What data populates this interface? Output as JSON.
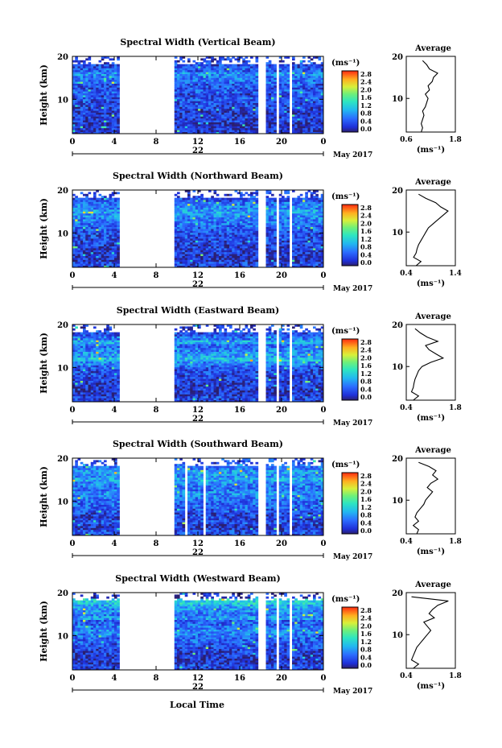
{
  "figure": {
    "xlabel": "Local Time",
    "date_label": "May 2017",
    "day_label": "22",
    "colorbar_unit": "(ms⁻¹)",
    "colorbar_ticks": [
      "0.0",
      "0.4",
      "0.8",
      "1.2",
      "1.6",
      "2.0",
      "2.4",
      "2.8"
    ],
    "avg_title": "Average",
    "avg_xunit": "(ms⁻¹)",
    "ylabel": "Height (km)"
  },
  "chart_data": [
    {
      "type": "heatmap",
      "title": "Spectral Width (Vertical Beam)",
      "x": [
        0,
        24
      ],
      "xticks": [
        "0",
        "4",
        "8",
        "12",
        "16",
        "20",
        "0"
      ],
      "ylim": [
        2,
        20
      ],
      "yticks": [
        "20",
        "10"
      ],
      "clim": [
        0,
        3.0
      ],
      "gaps": [
        [
          4.6,
          5.0
        ],
        [
          5.0,
          9.4
        ],
        [
          9.5,
          9.8
        ],
        [
          17.8,
          18.6
        ],
        [
          19.5,
          19.8
        ],
        [
          20.7,
          21.0
        ]
      ],
      "avg_profile": {
        "xlim": [
          0,
          1.8
        ],
        "xticks": [
          "0.6",
          "1.8"
        ],
        "height": [
          2,
          3,
          4,
          5,
          6,
          7,
          8,
          9,
          10,
          11,
          12,
          13,
          14,
          15,
          16,
          17,
          18,
          19
        ],
        "value": [
          0.55,
          0.6,
          0.55,
          0.6,
          0.65,
          0.6,
          0.7,
          0.75,
          0.8,
          0.7,
          0.85,
          0.8,
          0.95,
          1.0,
          1.15,
          0.85,
          0.75,
          0.6
        ]
      }
    },
    {
      "type": "heatmap",
      "title": "Spectral Width (Northward Beam)",
      "x": [
        0,
        24
      ],
      "xticks": [
        "0",
        "4",
        "8",
        "12",
        "16",
        "20",
        "0"
      ],
      "ylim": [
        2,
        20
      ],
      "yticks": [
        "20",
        "10"
      ],
      "clim": [
        0,
        3.0
      ],
      "gaps": [
        [
          4.6,
          5.0
        ],
        [
          5.0,
          9.4
        ],
        [
          9.5,
          9.8
        ],
        [
          17.8,
          18.6
        ],
        [
          19.5,
          19.8
        ],
        [
          20.7,
          21.0
        ]
      ],
      "avg_profile": {
        "xlim": [
          0.4,
          1.4
        ],
        "xticks": [
          "0.4",
          "1.4"
        ],
        "height": [
          2,
          3,
          4,
          5,
          6,
          7,
          8,
          9,
          10,
          11,
          12,
          13,
          14,
          15,
          16,
          17,
          18,
          19
        ],
        "value": [
          0.6,
          0.7,
          0.55,
          0.6,
          0.62,
          0.65,
          0.7,
          0.75,
          0.8,
          0.85,
          0.95,
          1.05,
          1.15,
          1.25,
          1.1,
          1.0,
          0.8,
          0.65
        ]
      }
    },
    {
      "type": "heatmap",
      "title": "Spectral Width (Eastward Beam)",
      "x": [
        0,
        24
      ],
      "xticks": [
        "0",
        "4",
        "8",
        "12",
        "16",
        "20",
        "0"
      ],
      "ylim": [
        2,
        20
      ],
      "yticks": [
        "20",
        "10"
      ],
      "clim": [
        0,
        3.0
      ],
      "gaps": [
        [
          4.6,
          5.0
        ],
        [
          5.0,
          9.4
        ],
        [
          9.5,
          9.8
        ],
        [
          17.8,
          18.6
        ],
        [
          19.5,
          19.8
        ],
        [
          20.7,
          21.0
        ]
      ],
      "avg_profile": {
        "xlim": [
          0.4,
          1.8
        ],
        "xticks": [
          "0.4",
          "1.8"
        ],
        "height": [
          2,
          3,
          4,
          5,
          6,
          7,
          8,
          9,
          10,
          11,
          12,
          13,
          14,
          15,
          16,
          17,
          18,
          19
        ],
        "value": [
          0.6,
          0.75,
          0.55,
          0.6,
          0.62,
          0.65,
          0.7,
          0.75,
          0.85,
          1.1,
          1.45,
          1.25,
          1.05,
          0.95,
          1.3,
          1.0,
          0.8,
          0.65
        ]
      }
    },
    {
      "type": "heatmap",
      "title": "Spectral Width (Southward Beam)",
      "x": [
        0,
        24
      ],
      "xticks": [
        "0",
        "4",
        "8",
        "12",
        "16",
        "20",
        "0"
      ],
      "ylim": [
        2,
        20
      ],
      "yticks": [
        "20",
        "10"
      ],
      "clim": [
        0,
        3.0
      ],
      "gaps": [
        [
          4.6,
          5.0
        ],
        [
          5.0,
          9.4
        ],
        [
          9.5,
          9.8
        ],
        [
          10.8,
          11.1
        ],
        [
          12.4,
          12.8
        ],
        [
          17.8,
          18.6
        ],
        [
          19.5,
          19.8
        ],
        [
          20.7,
          21.0
        ]
      ],
      "avg_profile": {
        "xlim": [
          0.4,
          1.8
        ],
        "xticks": [
          "0.4",
          "1.8"
        ],
        "height": [
          2,
          3,
          4,
          5,
          6,
          7,
          8,
          9,
          10,
          11,
          12,
          13,
          14,
          15,
          16,
          17,
          18,
          19
        ],
        "value": [
          0.7,
          0.75,
          0.6,
          0.75,
          0.65,
          0.7,
          0.8,
          0.9,
          0.95,
          1.05,
          1.15,
          1.0,
          1.1,
          1.3,
          1.15,
          1.25,
          1.05,
          0.75
        ]
      }
    },
    {
      "type": "heatmap",
      "title": "Spectral Width (Westward Beam)",
      "x": [
        0,
        24
      ],
      "xticks": [
        "0",
        "4",
        "8",
        "12",
        "16",
        "20",
        "0"
      ],
      "ylim": [
        2,
        20
      ],
      "yticks": [
        "20",
        "10"
      ],
      "clim": [
        0,
        3.0
      ],
      "gaps": [
        [
          4.6,
          5.0
        ],
        [
          5.0,
          9.4
        ],
        [
          9.5,
          9.8
        ],
        [
          17.8,
          18.6
        ],
        [
          19.5,
          19.8
        ],
        [
          20.7,
          21.0
        ]
      ],
      "avg_profile": {
        "xlim": [
          0.4,
          1.8
        ],
        "xticks": [
          "0.4",
          "1.8"
        ],
        "height": [
          2,
          3,
          4,
          5,
          6,
          7,
          8,
          9,
          10,
          11,
          12,
          13,
          14,
          15,
          16,
          17,
          18,
          19
        ],
        "value": [
          0.6,
          0.75,
          0.55,
          0.6,
          0.65,
          0.7,
          0.8,
          0.9,
          1.0,
          1.1,
          1.0,
          0.9,
          1.2,
          1.05,
          1.15,
          1.3,
          1.6,
          0.55
        ]
      }
    }
  ]
}
